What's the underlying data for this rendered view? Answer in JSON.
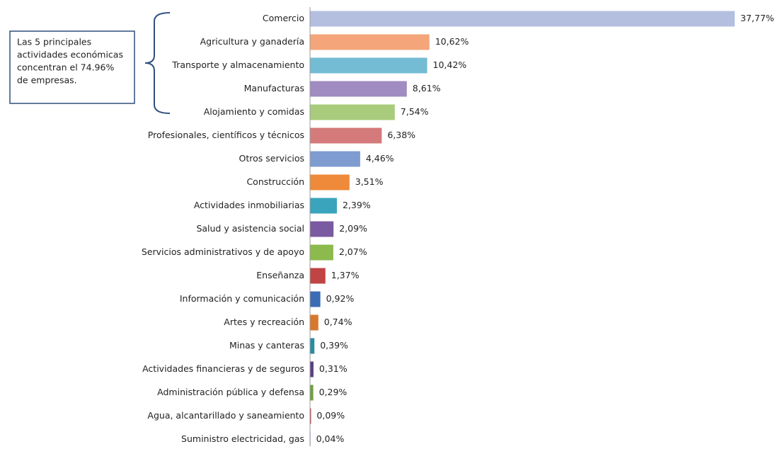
{
  "chart_data": {
    "type": "bar",
    "orientation": "horizontal",
    "categories": [
      "Comercio",
      "Agricultura y ganadería",
      "Transporte y almacenamiento",
      "Manufacturas",
      "Alojamiento y comidas",
      "Profesionales, científicos y técnicos",
      "Otros servicios",
      "Construcción",
      "Actividades inmobiliarias",
      "Salud y asistencia social",
      "Servicios administrativos y de apoyo",
      "Enseñanza",
      "Información y comunicación",
      "Artes y recreación",
      "Minas y canteras",
      "Actividades financieras y de seguros",
      "Administración pública y defensa",
      "Agua, alcantarillado y saneamiento",
      "Suministro electricidad, gas"
    ],
    "values": [
      37.77,
      10.62,
      10.42,
      8.61,
      7.54,
      6.38,
      4.46,
      3.51,
      2.39,
      2.09,
      2.07,
      1.37,
      0.92,
      0.74,
      0.39,
      0.31,
      0.29,
      0.09,
      0.04
    ],
    "value_labels": [
      "37,77%",
      "10,62%",
      "10,42%",
      "8,61%",
      "7,54%",
      "6,38%",
      "4,46%",
      "3,51%",
      "2,39%",
      "2,09%",
      "2,07%",
      "1,37%",
      "0,92%",
      "0,74%",
      "0,39%",
      "0,31%",
      "0,29%",
      "0,09%",
      "0,04%"
    ],
    "colors": [
      "#b4bfe0",
      "#f4a57a",
      "#74bcd4",
      "#a08cc0",
      "#a8cc7c",
      "#d47a7a",
      "#7e9cd0",
      "#ee8a3a",
      "#3aa4bc",
      "#7a5aa0",
      "#8cba4c",
      "#c04444",
      "#3c6cb4",
      "#d8782c",
      "#2a8ca0",
      "#5a4080",
      "#70a040",
      "#b83838",
      "#3060a0"
    ],
    "annotation": [
      "Las 5 principales",
      "actividades económicas",
      "concentran el 74.96%",
      "de empresas."
    ]
  }
}
